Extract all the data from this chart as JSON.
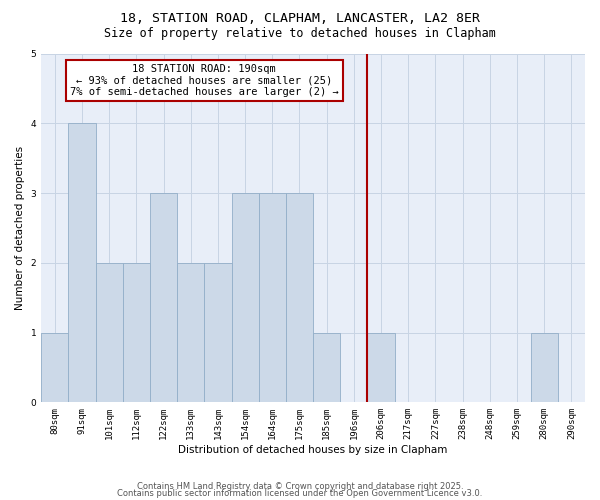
{
  "title1": "18, STATION ROAD, CLAPHAM, LANCASTER, LA2 8ER",
  "title2": "Size of property relative to detached houses in Clapham",
  "xlabel": "Distribution of detached houses by size in Clapham",
  "ylabel": "Number of detached properties",
  "bar_color": "#ccd9e8",
  "bar_edge_color": "#92aec8",
  "bar_linewidth": 0.6,
  "bins_labels": [
    "80sqm",
    "91sqm",
    "101sqm",
    "112sqm",
    "122sqm",
    "133sqm",
    "143sqm",
    "154sqm",
    "164sqm",
    "175sqm",
    "185sqm",
    "196sqm",
    "206sqm",
    "217sqm",
    "227sqm",
    "238sqm",
    "248sqm",
    "259sqm",
    "280sqm",
    "290sqm"
  ],
  "heights": [
    1,
    4,
    2,
    2,
    3,
    2,
    2,
    3,
    3,
    3,
    1,
    0,
    1,
    0,
    0,
    0,
    0,
    0,
    1,
    0
  ],
  "n_bars": 20,
  "vline_pos": 11.5,
  "vline_color": "#aa0000",
  "annotation_text": "18 STATION ROAD: 190sqm\n← 93% of detached houses are smaller (25)\n7% of semi-detached houses are larger (2) →",
  "annotation_box_facecolor": "white",
  "annotation_box_edgecolor": "#aa0000",
  "ylim": [
    0,
    5
  ],
  "yticks": [
    0,
    1,
    2,
    3,
    4,
    5
  ],
  "grid_color": "#c8d4e4",
  "bg_color": "#e8eef8",
  "footer1": "Contains HM Land Registry data © Crown copyright and database right 2025.",
  "footer2": "Contains public sector information licensed under the Open Government Licence v3.0.",
  "title_fontsize": 9.5,
  "subtitle_fontsize": 8.5,
  "axis_label_fontsize": 7.5,
  "tick_fontsize": 6.5,
  "annotation_fontsize": 7.5,
  "footer_fontsize": 6,
  "ylabel_fontsize": 7.5
}
